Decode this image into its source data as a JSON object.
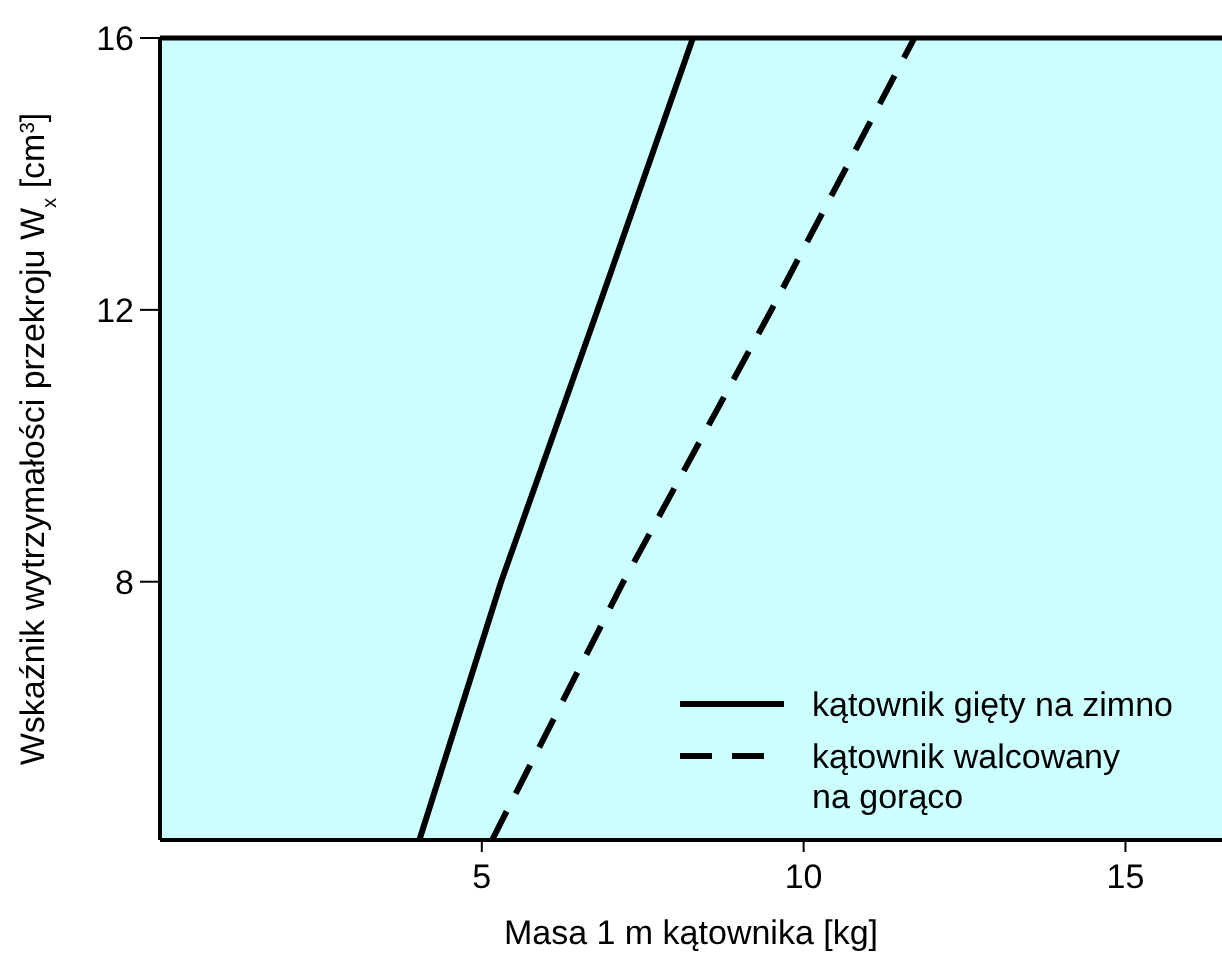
{
  "chart_data": {
    "type": "line",
    "xlabel": "Masa 1 m kątownika [kg]",
    "ylabel": "Wskaźnik wytrzymałości przekroju W$_{x}$ [cm$^{3}$]",
    "xlim": [
      0,
      16.5
    ],
    "ylim": [
      4.2,
      16
    ],
    "xticks": [
      5,
      10,
      15
    ],
    "yticks": [
      8,
      12,
      16
    ],
    "grid": false,
    "legend": "bottom right",
    "marker": "none",
    "series": [
      {
        "name": "kątownik gięty na zimno",
        "color": "#000000",
        "line_style": "solid",
        "x": [
          4.03,
          5.3,
          6.8,
          8.28
        ],
        "values": [
          4.2,
          8,
          12,
          16
        ]
      },
      {
        "name": "kątownik walcowany\nna gorąco",
        "color": "#000000",
        "line_style": "dashed",
        "x": [
          5.16,
          7.2,
          9.5,
          11.72
        ],
        "values": [
          4.2,
          8,
          12,
          16
        ]
      }
    ]
  }
}
